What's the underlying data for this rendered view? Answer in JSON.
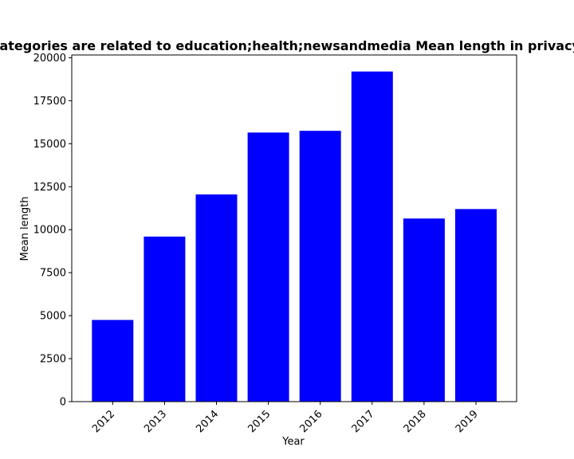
{
  "chart_data": {
    "type": "bar",
    "title": "App categories are related to education;health;newsandmedia Mean length in privacy policy",
    "xlabel": "Year",
    "ylabel": "Mean length",
    "categories": [
      "2012",
      "2013",
      "2014",
      "2015",
      "2016",
      "2017",
      "2018",
      "2019"
    ],
    "values": [
      4750,
      9600,
      12050,
      15650,
      15750,
      19200,
      10650,
      11200
    ],
    "ylim": [
      0,
      20161
    ],
    "yticks": [
      0,
      2500,
      5000,
      7500,
      10000,
      12500,
      15000,
      17500,
      20000
    ],
    "ytick_labels": [
      "0",
      "2500",
      "5000",
      "7500",
      "10000",
      "12500",
      "15000",
      "17500",
      "20000"
    ],
    "bar_color": "#0000ff",
    "grid": false,
    "legend": false
  }
}
